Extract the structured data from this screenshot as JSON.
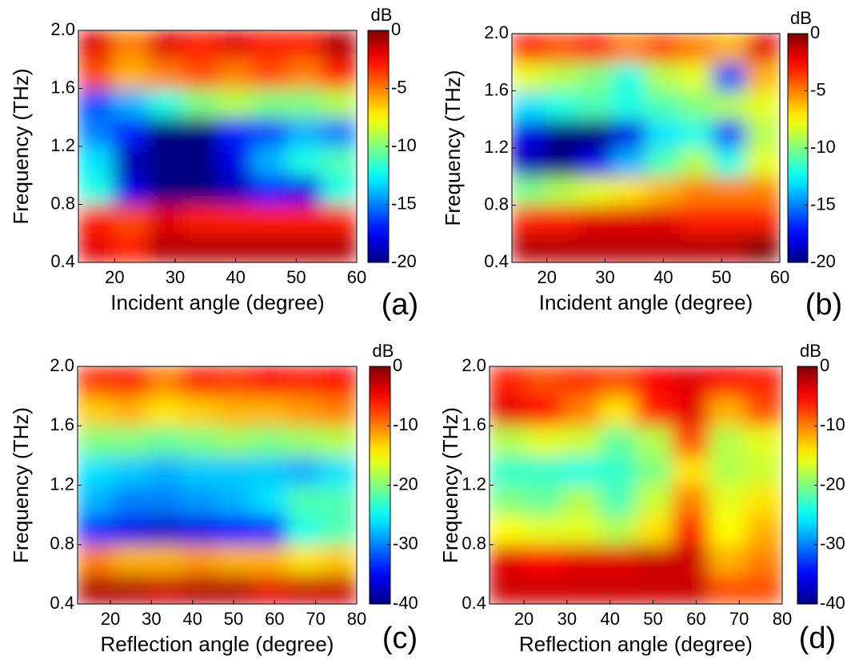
{
  "chart_data": [
    {
      "type": "heatmap",
      "colormap": "jet",
      "xlabel": "Incident angle (degree)",
      "ylabel": "Frequency (THz)",
      "colorbar_label": "dB",
      "panel_label": "(a)",
      "xlim": [
        14,
        60
      ],
      "ylim": [
        0.4,
        2.0
      ],
      "xticks": [
        20,
        30,
        40,
        50,
        60
      ],
      "yticks": [
        0.4,
        0.8,
        1.2,
        1.6,
        {
          "value": 2.0,
          "label": "2.0"
        }
      ],
      "zlim": [
        -20,
        0
      ],
      "zticks": [
        0,
        -5,
        -10,
        -15,
        -20
      ],
      "x": [
        16.875,
        22.625,
        28.375,
        34.125,
        39.875,
        45.625,
        51.375,
        57.125
      ],
      "y": [
        0.5,
        0.7,
        0.9,
        1.1,
        1.3,
        1.5,
        1.7,
        1.9
      ],
      "values": [
        [
          -2,
          -3,
          -1,
          -1,
          -1,
          -1,
          -1,
          -1
        ],
        [
          -3,
          -4,
          -2,
          -3,
          -3,
          -3,
          -3,
          -3
        ],
        [
          -12,
          -18,
          -20,
          -20,
          -19,
          -17,
          -18,
          -12
        ],
        [
          -13,
          -19,
          -20,
          -20,
          -18,
          -14,
          -12,
          -11
        ],
        [
          -15,
          -17,
          -20,
          -20,
          -17,
          -16,
          -14,
          -15
        ],
        [
          -16,
          -14,
          -12,
          -10,
          -9,
          -10,
          -10,
          -9
        ],
        [
          -4,
          -6,
          -5,
          -4,
          -5,
          -4,
          -5,
          -3
        ],
        [
          -2,
          -5,
          -2,
          -3,
          -2,
          -3,
          -3,
          -1
        ]
      ]
    },
    {
      "type": "heatmap",
      "colormap": "jet",
      "xlabel": "Incident angle (degree)",
      "ylabel": "Frequency (THz)",
      "colorbar_label": "dB",
      "panel_label": "(b)",
      "xlim": [
        14,
        60
      ],
      "ylim": [
        0.4,
        2.0
      ],
      "xticks": [
        20,
        30,
        40,
        50,
        60
      ],
      "yticks": [
        0.4,
        0.8,
        1.2,
        1.6,
        {
          "value": 2.0,
          "label": "2.0"
        }
      ],
      "zlim": [
        -20,
        0
      ],
      "zticks": [
        0,
        -5,
        -10,
        -15,
        -20
      ],
      "x": [
        16.875,
        22.625,
        28.375,
        34.125,
        39.875,
        45.625,
        51.375,
        57.125
      ],
      "y": [
        0.5,
        0.7,
        0.9,
        1.1,
        1.3,
        1.5,
        1.7,
        1.9
      ],
      "values": [
        [
          -1,
          -1,
          -1,
          -1,
          -1,
          -1,
          -1,
          0
        ],
        [
          -3,
          -3,
          -2,
          -2,
          -2,
          -3,
          -3,
          -3
        ],
        [
          -10,
          -9,
          -8,
          -7,
          -6,
          -5,
          -5,
          -5
        ],
        [
          -19,
          -20,
          -18,
          -14,
          -11,
          -9,
          -12,
          -8
        ],
        [
          -18,
          -20,
          -20,
          -18,
          -13,
          -12,
          -16,
          -9
        ],
        [
          -13,
          -12,
          -11,
          -12,
          -11,
          -10,
          -9,
          -8
        ],
        [
          -8,
          -9,
          -10,
          -12,
          -9,
          -8,
          -16,
          -6
        ],
        [
          -3,
          -4,
          -3,
          -5,
          -4,
          -5,
          -6,
          -2
        ]
      ]
    },
    {
      "type": "heatmap",
      "colormap": "jet",
      "xlabel": "Reflection angle (degree)",
      "ylabel": "Frequency (THz)",
      "colorbar_label": "dB",
      "panel_label": "(c)",
      "xlim": [
        12,
        80
      ],
      "ylim": [
        0.4,
        2.0
      ],
      "xticks": [
        20,
        30,
        40,
        50,
        60,
        70,
        80
      ],
      "yticks": [
        0.4,
        0.8,
        1.2,
        1.6,
        {
          "value": 2.0,
          "label": "2.0"
        }
      ],
      "zlim": [
        -40,
        0
      ],
      "zticks": [
        0,
        -10,
        -20,
        -30,
        -40
      ],
      "x": [
        16.25,
        24.75,
        33.25,
        41.75,
        50.25,
        58.75,
        67.25,
        75.75
      ],
      "y": [
        0.5,
        0.7,
        0.9,
        1.1,
        1.3,
        1.5,
        1.7,
        1.9
      ],
      "values": [
        [
          -2,
          -2,
          -3,
          -2,
          -2,
          -4,
          -3,
          -3
        ],
        [
          -10,
          -12,
          -12,
          -11,
          -12,
          -12,
          -14,
          -13
        ],
        [
          -33,
          -36,
          -37,
          -36,
          -35,
          -34,
          -24,
          -22
        ],
        [
          -28,
          -30,
          -30,
          -29,
          -28,
          -26,
          -22,
          -22
        ],
        [
          -26,
          -27,
          -28,
          -27,
          -27,
          -27,
          -28,
          -26
        ],
        [
          -20,
          -20,
          -21,
          -20,
          -19,
          -20,
          -19,
          -18
        ],
        [
          -13,
          -12,
          -14,
          -13,
          -12,
          -12,
          -11,
          -10
        ],
        [
          -7,
          -6,
          -10,
          -6,
          -7,
          -5,
          -6,
          -5
        ]
      ]
    },
    {
      "type": "heatmap",
      "colormap": "jet",
      "xlabel": "Reflection angle (degree)",
      "ylabel": "Frequency (THz)",
      "colorbar_label": "dB",
      "panel_label": "(d)",
      "xlim": [
        12,
        80
      ],
      "ylim": [
        0.4,
        2.0
      ],
      "xticks": [
        20,
        30,
        40,
        50,
        60,
        70,
        80
      ],
      "yticks": [
        0.4,
        0.8,
        1.2,
        1.6,
        {
          "value": 2.0,
          "label": "2.0"
        }
      ],
      "zlim": [
        -40,
        0
      ],
      "zticks": [
        0,
        -10,
        -20,
        -30,
        -40
      ],
      "x": [
        16.25,
        24.75,
        33.25,
        41.75,
        50.25,
        58.75,
        67.25,
        75.75
      ],
      "y": [
        0.5,
        0.7,
        0.9,
        1.1,
        1.3,
        1.5,
        1.7,
        1.9
      ],
      "values": [
        [
          -3,
          -3,
          -3,
          -3,
          -3,
          -3,
          -8,
          -8
        ],
        [
          -4,
          -5,
          -4,
          -4,
          -3,
          -3,
          -12,
          -10
        ],
        [
          -15,
          -16,
          -16,
          -18,
          -14,
          -6,
          -15,
          -12
        ],
        [
          -20,
          -21,
          -18,
          -22,
          -17,
          -10,
          -16,
          -14
        ],
        [
          -23,
          -23,
          -24,
          -23,
          -20,
          -14,
          -18,
          -17
        ],
        [
          -18,
          -16,
          -17,
          -21,
          -18,
          -8,
          -18,
          -16
        ],
        [
          -4,
          -5,
          -10,
          -14,
          -6,
          -4,
          -12,
          -8
        ],
        [
          -6,
          -8,
          -7,
          -8,
          -5,
          -4,
          -5,
          -6
        ]
      ]
    }
  ]
}
